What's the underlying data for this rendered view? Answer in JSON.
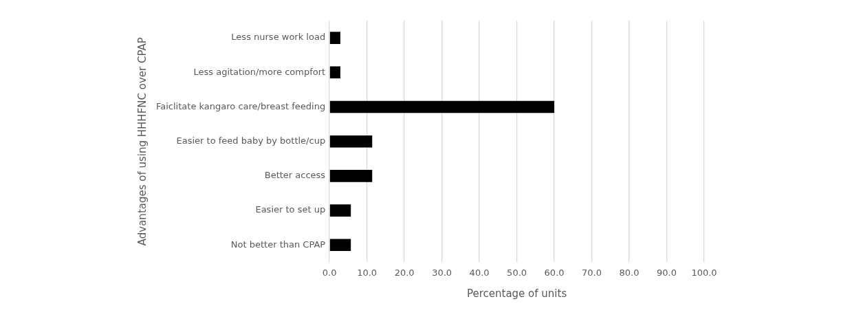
{
  "chart_data": {
    "type": "bar",
    "orientation": "horizontal",
    "xlabel": "Percentage of units",
    "ylabel": "Advantages of using HHHFNC over CPAP",
    "categories": [
      "Less nurse work load",
      "Less agitation/more compfort",
      "Faiclitate kangaro care/breast feeding",
      "Easier to feed baby by bottle/cup",
      "Better access",
      "Easier to set up",
      "Not better than CPAP"
    ],
    "values": [
      2.9,
      2.9,
      60.0,
      11.4,
      11.4,
      5.7,
      5.7
    ],
    "color": "#000000",
    "xlim": [
      0,
      100
    ],
    "xticks": [
      {
        "value": 0,
        "label": "0.0"
      },
      {
        "value": 10,
        "label": "10.0"
      },
      {
        "value": 20,
        "label": "20.0"
      },
      {
        "value": 30,
        "label": "30.0"
      },
      {
        "value": 40,
        "label": "40.0"
      },
      {
        "value": 50,
        "label": "50.0"
      },
      {
        "value": 60,
        "label": "60.0"
      },
      {
        "value": 70,
        "label": "70.0"
      },
      {
        "value": 80,
        "label": "80.0"
      },
      {
        "value": 90,
        "label": "90.0"
      },
      {
        "value": 100,
        "label": "100.0"
      }
    ],
    "grid": "x",
    "legend": false
  }
}
